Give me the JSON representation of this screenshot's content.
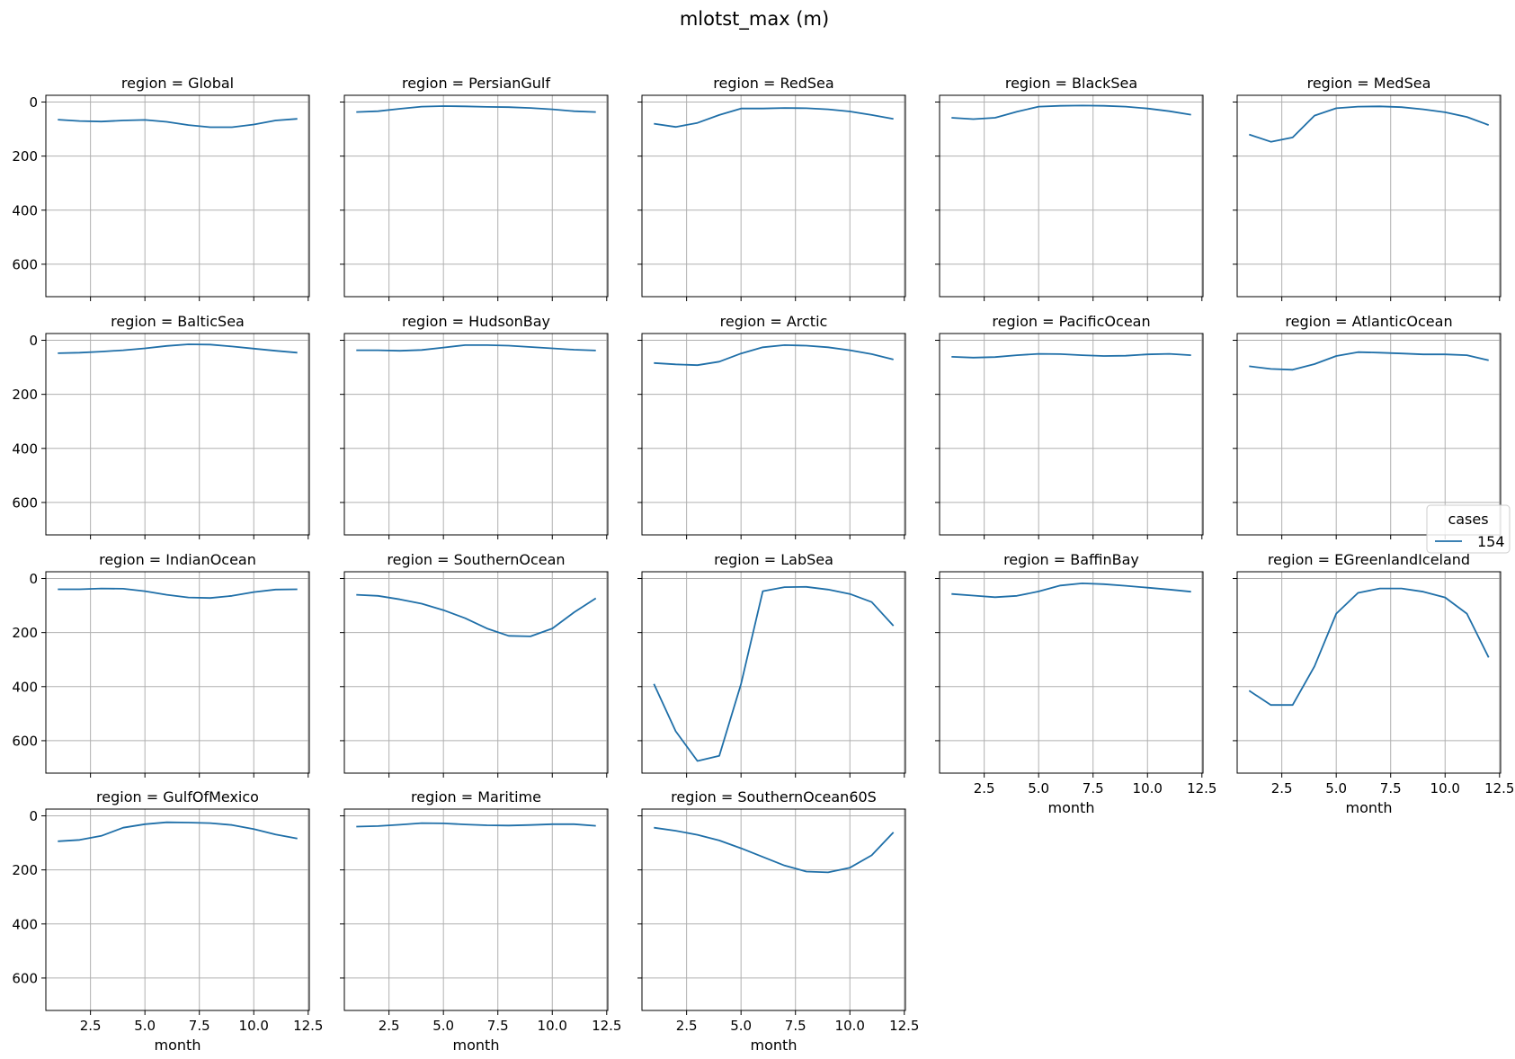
{
  "figure": {
    "suptitle": "mlotst_max (m)",
    "line_color": "#1f6fa8",
    "grid_color": "#b0b0b0"
  },
  "legend": {
    "title": "cases",
    "entries": [
      "154"
    ],
    "placement": "right"
  },
  "axes": {
    "x_label": "month",
    "x_ticks": [
      2.5,
      5.0,
      7.5,
      10.0,
      12.5
    ],
    "x_tick_labels": [
      "2.5",
      "5.0",
      "7.5",
      "10.0",
      "12.5"
    ],
    "xlim": [
      0.45,
      12.55
    ],
    "y_ticks": [
      0,
      200,
      400,
      600
    ],
    "y_tick_labels": [
      "0",
      "200",
      "400",
      "600"
    ],
    "ylim": [
      720,
      -25
    ],
    "y_inverted": true,
    "grid": true
  },
  "chart_data": {
    "type": "line",
    "layout": "facet-grid 4x5",
    "x": [
      1,
      2,
      3,
      4,
      5,
      6,
      7,
      8,
      9,
      10,
      11,
      12
    ],
    "series_name": "154",
    "panels": [
      {
        "title": "region = Global",
        "values": [
          65,
          70,
          72,
          68,
          66,
          73,
          85,
          93,
          93,
          83,
          68,
          62
        ]
      },
      {
        "title": "region = PersianGulf",
        "values": [
          37,
          34,
          25,
          17,
          15,
          16,
          18,
          19,
          22,
          27,
          34,
          37
        ]
      },
      {
        "title": "region = RedSea",
        "values": [
          80,
          92,
          77,
          48,
          24,
          24,
          22,
          23,
          27,
          35,
          48,
          62
        ]
      },
      {
        "title": "region = BlackSea",
        "values": [
          58,
          63,
          58,
          36,
          17,
          14,
          13,
          14,
          17,
          24,
          34,
          47
        ]
      },
      {
        "title": "region = MedSea",
        "values": [
          120,
          147,
          131,
          50,
          23,
          17,
          16,
          19,
          27,
          38,
          55,
          85
        ]
      },
      {
        "title": "region = BalticSea",
        "values": [
          48,
          46,
          42,
          37,
          30,
          21,
          15,
          16,
          23,
          31,
          39,
          46
        ]
      },
      {
        "title": "region = HudsonBay",
        "values": [
          37,
          37,
          39,
          36,
          27,
          18,
          18,
          20,
          25,
          30,
          35,
          38
        ]
      },
      {
        "title": "region = Arctic",
        "values": [
          84,
          89,
          92,
          79,
          49,
          26,
          18,
          20,
          26,
          37,
          51,
          71
        ]
      },
      {
        "title": "region = PacificOcean",
        "values": [
          61,
          64,
          62,
          55,
          50,
          51,
          55,
          58,
          57,
          52,
          50,
          55
        ]
      },
      {
        "title": "region = AtlanticOcean",
        "values": [
          96,
          106,
          109,
          88,
          58,
          44,
          46,
          49,
          52,
          52,
          55,
          74
        ]
      },
      {
        "title": "region = IndianOcean",
        "values": [
          40,
          40,
          37,
          38,
          47,
          60,
          70,
          72,
          64,
          50,
          41,
          40
        ]
      },
      {
        "title": "region = SouthernOcean",
        "values": [
          60,
          64,
          77,
          93,
          117,
          147,
          185,
          212,
          214,
          185,
          125,
          73
        ]
      },
      {
        "title": "region = LabSea",
        "values": [
          390,
          565,
          675,
          656,
          390,
          47,
          32,
          31,
          41,
          57,
          87,
          175
        ]
      },
      {
        "title": "region = BaffinBay",
        "values": [
          57,
          63,
          69,
          64,
          48,
          26,
          18,
          21,
          27,
          34,
          41,
          49
        ]
      },
      {
        "title": "region = EGreenlandIceland",
        "values": [
          415,
          468,
          468,
          325,
          130,
          53,
          37,
          37,
          49,
          70,
          130,
          292
        ]
      },
      {
        "title": "region = GulfOfMexico",
        "values": [
          94,
          89,
          74,
          44,
          31,
          24,
          25,
          27,
          34,
          49,
          69,
          84
        ]
      },
      {
        "title": "region = Maritime",
        "values": [
          40,
          38,
          33,
          27,
          28,
          32,
          35,
          36,
          34,
          31,
          31,
          37
        ]
      },
      {
        "title": "region = SouthernOcean60S",
        "values": [
          44,
          55,
          70,
          91,
          120,
          152,
          184,
          206,
          209,
          192,
          146,
          61
        ]
      }
    ]
  }
}
